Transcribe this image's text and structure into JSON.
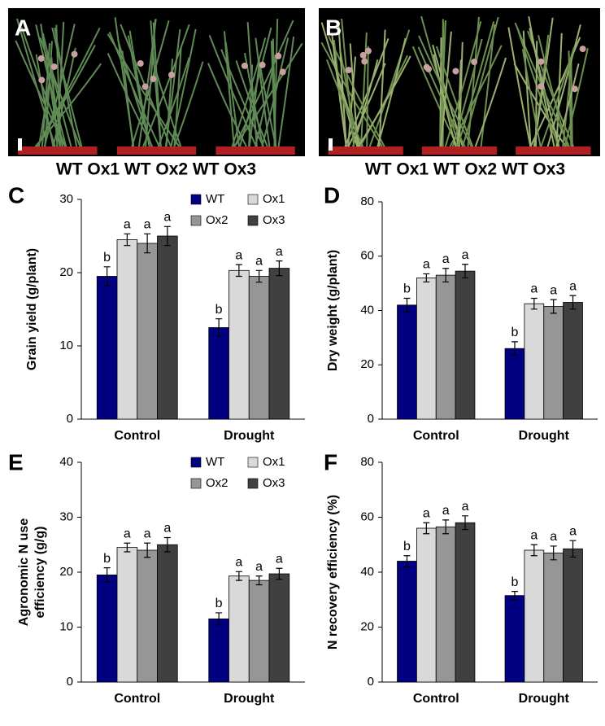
{
  "photos": [
    {
      "label": "A",
      "caption": "WT Ox1 WT Ox2 WT Ox3"
    },
    {
      "label": "B",
      "caption": "WT Ox1 WT Ox2 WT Ox3"
    }
  ],
  "chart_data": [
    {
      "type": "bar",
      "panel": "C",
      "ylabel": [
        "Grain yield (g/plant)"
      ],
      "categories": [
        "Control",
        "Drought"
      ],
      "ylim": [
        0,
        30
      ],
      "yticks": [
        0,
        10,
        20,
        30
      ],
      "legend": "upper right",
      "series": [
        {
          "name": "WT",
          "color": "#000080",
          "values": [
            19.5,
            12.5
          ],
          "errors": [
            1.3,
            1.2
          ],
          "letters": [
            "b",
            "b"
          ]
        },
        {
          "name": "Ox1",
          "color": "#d9d9d9",
          "values": [
            24.5,
            20.3
          ],
          "errors": [
            0.8,
            0.8
          ],
          "letters": [
            "a",
            "a"
          ]
        },
        {
          "name": "Ox2",
          "color": "#969696",
          "values": [
            24,
            19.5
          ],
          "errors": [
            1.3,
            0.8
          ],
          "letters": [
            "a",
            "a"
          ]
        },
        {
          "name": "Ox3",
          "color": "#404040",
          "values": [
            25,
            20.6
          ],
          "errors": [
            1.3,
            1.0
          ],
          "letters": [
            "a",
            "a"
          ]
        }
      ]
    },
    {
      "type": "bar",
      "panel": "D",
      "ylabel": [
        "Dry weight (g/plant)"
      ],
      "categories": [
        "Control",
        "Drought"
      ],
      "ylim": [
        0,
        80
      ],
      "yticks": [
        0,
        20,
        40,
        60,
        80
      ],
      "series": [
        {
          "name": "WT",
          "color": "#000080",
          "values": [
            42,
            26
          ],
          "errors": [
            2.5,
            2.5
          ],
          "letters": [
            "b",
            "b"
          ]
        },
        {
          "name": "Ox1",
          "color": "#d9d9d9",
          "values": [
            52,
            42.5
          ],
          "errors": [
            1.5,
            2
          ],
          "letters": [
            "a",
            "a"
          ]
        },
        {
          "name": "Ox2",
          "color": "#969696",
          "values": [
            53,
            41.5
          ],
          "errors": [
            2.5,
            2.5
          ],
          "letters": [
            "a",
            "a"
          ]
        },
        {
          "name": "Ox3",
          "color": "#404040",
          "values": [
            54.5,
            43
          ],
          "errors": [
            2.5,
            2.5
          ],
          "letters": [
            "a",
            "a"
          ]
        }
      ]
    },
    {
      "type": "bar",
      "panel": "E",
      "ylabel": [
        "Agronomic N use",
        "efficiency (g/g)"
      ],
      "categories": [
        "Control",
        "Drought"
      ],
      "ylim": [
        0,
        40
      ],
      "yticks": [
        0,
        10,
        20,
        30,
        40
      ],
      "legend": "upper right",
      "series": [
        {
          "name": "WT",
          "color": "#000080",
          "values": [
            19.5,
            11.5
          ],
          "errors": [
            1.3,
            1.1
          ],
          "letters": [
            "b",
            "b"
          ]
        },
        {
          "name": "Ox1",
          "color": "#d9d9d9",
          "values": [
            24.5,
            19.3
          ],
          "errors": [
            0.8,
            0.8
          ],
          "letters": [
            "a",
            "a"
          ]
        },
        {
          "name": "Ox2",
          "color": "#969696",
          "values": [
            24,
            18.5
          ],
          "errors": [
            1.3,
            0.8
          ],
          "letters": [
            "a",
            "a"
          ]
        },
        {
          "name": "Ox3",
          "color": "#404040",
          "values": [
            25,
            19.7
          ],
          "errors": [
            1.3,
            1.0
          ],
          "letters": [
            "a",
            "a"
          ]
        }
      ]
    },
    {
      "type": "bar",
      "panel": "F",
      "ylabel": [
        "N recovery efficiency (%)"
      ],
      "categories": [
        "Control",
        "Drought"
      ],
      "ylim": [
        0,
        80
      ],
      "yticks": [
        0,
        20,
        40,
        60,
        80
      ],
      "series": [
        {
          "name": "WT",
          "color": "#000080",
          "values": [
            44,
            31.5
          ],
          "errors": [
            2,
            1.5
          ],
          "letters": [
            "b",
            "b"
          ]
        },
        {
          "name": "Ox1",
          "color": "#d9d9d9",
          "values": [
            56,
            48
          ],
          "errors": [
            2,
            2
          ],
          "letters": [
            "a",
            "a"
          ]
        },
        {
          "name": "Ox2",
          "color": "#969696",
          "values": [
            56.5,
            47
          ],
          "errors": [
            2.5,
            2.5
          ],
          "letters": [
            "a",
            "a"
          ]
        },
        {
          "name": "Ox3",
          "color": "#404040",
          "values": [
            58,
            48.5
          ],
          "errors": [
            2.5,
            3
          ],
          "letters": [
            "a",
            "a"
          ]
        }
      ]
    }
  ]
}
